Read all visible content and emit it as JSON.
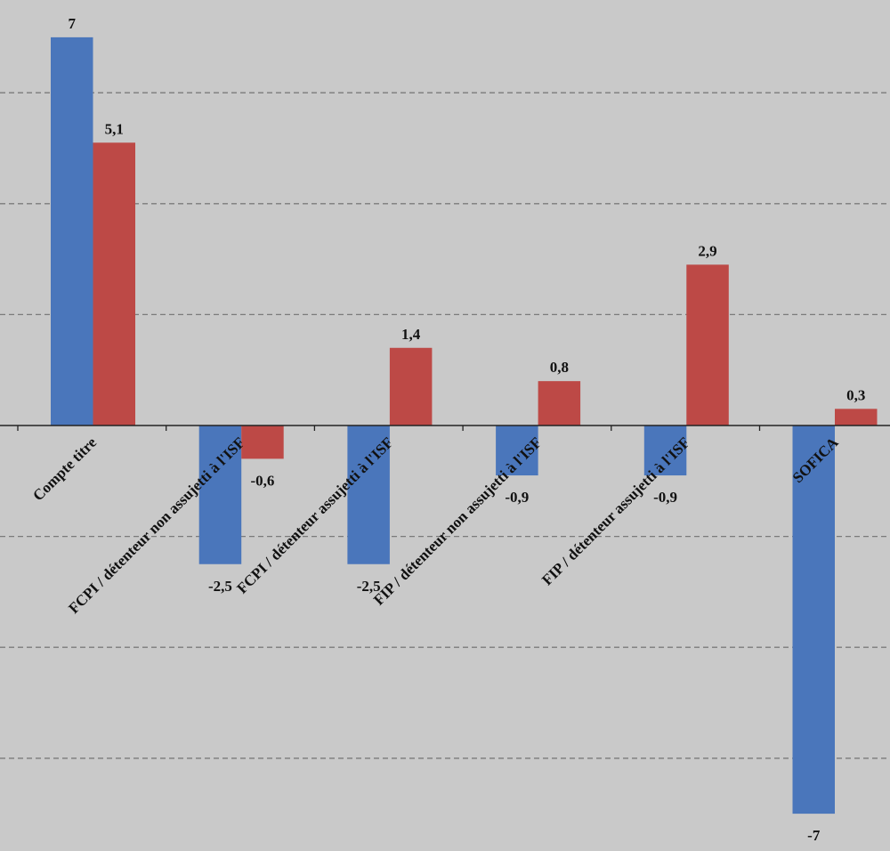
{
  "chart_data": {
    "type": "bar",
    "categories": [
      "Compte titre",
      "FCPI / détenteur non assujetti à l'ISF",
      "FCPI / détenteur assujetti à l'ISF",
      "FIP / détenteur non assujetti à l'ISF",
      "FIP / détenteur assujetti à l'ISF",
      "SOFICA"
    ],
    "series": [
      {
        "values": [
          7,
          -2.5,
          -2.5,
          -0.9,
          -0.9,
          -7
        ],
        "color": "#4a76bb"
      },
      {
        "values": [
          5.1,
          -0.6,
          1.4,
          0.8,
          2.9,
          0.3
        ],
        "color": "#bd4946"
      }
    ],
    "data_labels": [
      [
        "7",
        "-2,5",
        "-2,5",
        "-0,9",
        "-0,9",
        "-7"
      ],
      [
        "5,1",
        "-0,6",
        "1,4",
        "0,8",
        "2,9",
        "0,3"
      ]
    ],
    "ylim": [
      -7.7,
      7.7
    ],
    "grid": true,
    "grid_step": 2,
    "legend": "none",
    "title": "",
    "xlabel": "",
    "ylabel": ""
  }
}
